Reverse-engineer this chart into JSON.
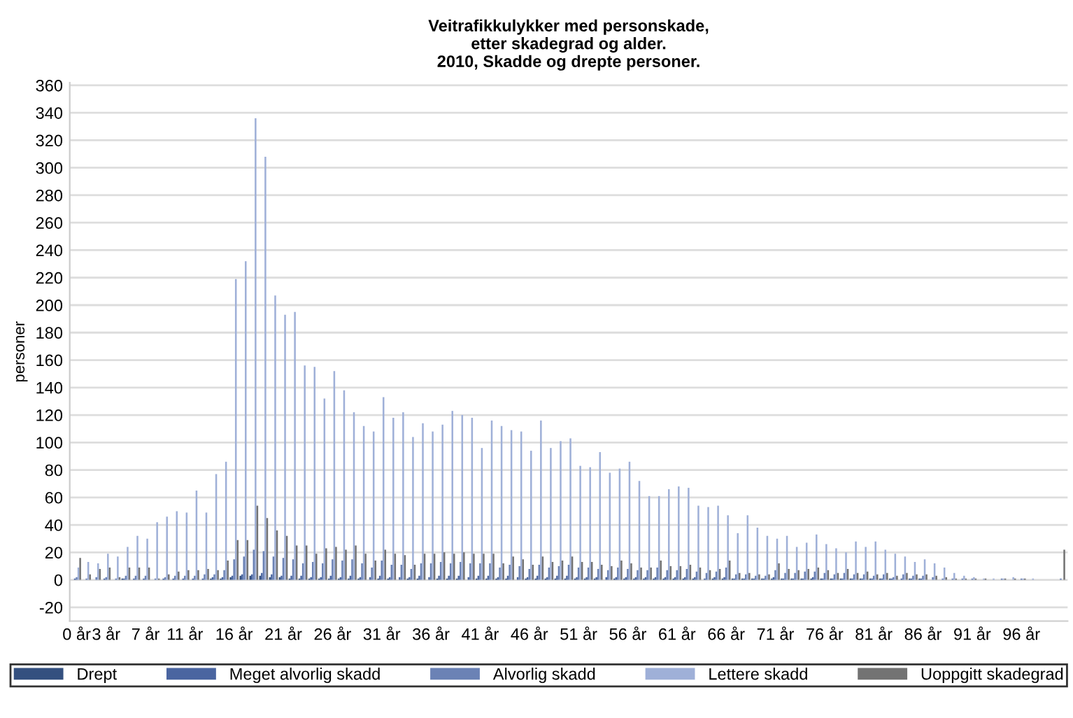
{
  "chart_data": {
    "type": "bar",
    "title": "Veitrafikkulykker med personskade,\netter skadegrad og alder.\n2010, Skadde og drepte personer.",
    "ylabel": "personer",
    "categories": [
      "0 år",
      null,
      null,
      "3 år",
      null,
      null,
      null,
      "7 år",
      null,
      null,
      null,
      "11 år",
      null,
      null,
      null,
      null,
      "16 år",
      null,
      null,
      null,
      null,
      "21 år",
      null,
      null,
      null,
      null,
      "26 år",
      null,
      null,
      null,
      null,
      "31 år",
      null,
      null,
      null,
      null,
      "36 år",
      null,
      null,
      null,
      null,
      "41 år",
      null,
      null,
      null,
      null,
      "46 år",
      null,
      null,
      null,
      null,
      "51 år",
      null,
      null,
      null,
      null,
      "56 år",
      null,
      null,
      null,
      null,
      "61 år",
      null,
      null,
      null,
      null,
      "66 år",
      null,
      null,
      null,
      null,
      "71 år",
      null,
      null,
      null,
      null,
      "76 år",
      null,
      null,
      null,
      null,
      "81 år",
      null,
      null,
      null,
      null,
      "86 år",
      null,
      null,
      null,
      null,
      "91 år",
      null,
      null,
      null,
      null,
      "96 år",
      null,
      null,
      null,
      null
    ],
    "series": [
      {
        "name": "Drept",
        "color": "#34507f",
        "values": [
          0,
          0,
          0,
          0,
          0,
          1,
          0,
          0,
          0,
          0,
          0,
          0,
          0,
          0,
          1,
          1,
          2,
          3,
          3,
          3,
          2,
          2,
          1,
          1,
          1,
          1,
          1,
          1,
          1,
          1,
          0,
          1,
          1,
          0,
          1,
          1,
          0,
          1,
          1,
          1,
          0,
          1,
          1,
          1,
          1,
          0,
          1,
          1,
          1,
          1,
          1,
          1,
          1,
          1,
          0,
          1,
          1,
          1,
          1,
          1,
          1,
          1,
          1,
          1,
          0,
          1,
          1,
          1,
          1,
          1,
          1,
          1,
          1,
          1,
          1,
          1,
          1,
          1,
          1,
          1,
          1,
          1,
          1,
          1,
          0,
          1,
          1,
          0,
          0,
          0,
          0,
          0,
          0,
          0,
          0,
          0,
          0,
          0,
          0,
          0,
          0
        ]
      },
      {
        "name": "Meget alvorlig skadd",
        "color": "#4a65a0",
        "values": [
          1,
          0,
          0,
          1,
          0,
          1,
          1,
          1,
          0,
          1,
          1,
          1,
          1,
          1,
          2,
          2,
          3,
          4,
          4,
          5,
          4,
          3,
          3,
          3,
          2,
          2,
          3,
          2,
          3,
          2,
          2,
          3,
          2,
          2,
          2,
          3,
          2,
          3,
          3,
          3,
          2,
          3,
          3,
          2,
          3,
          2,
          2,
          3,
          2,
          3,
          3,
          2,
          2,
          2,
          2,
          2,
          2,
          2,
          2,
          2,
          2,
          2,
          2,
          2,
          1,
          2,
          2,
          1,
          1,
          1,
          1,
          2,
          1,
          1,
          1,
          2,
          1,
          1,
          1,
          1,
          1,
          1,
          1,
          1,
          1,
          1,
          1,
          0,
          0,
          0,
          0,
          0,
          0,
          0,
          0,
          0,
          0,
          0,
          0,
          0,
          0
        ]
      },
      {
        "name": "Alvorlig skadd",
        "color": "#6b82b5",
        "values": [
          2,
          1,
          2,
          2,
          1,
          3,
          3,
          3,
          1,
          2,
          3,
          3,
          3,
          4,
          4,
          7,
          15,
          17,
          22,
          21,
          17,
          16,
          15,
          12,
          13,
          12,
          15,
          14,
          15,
          12,
          9,
          14,
          11,
          11,
          8,
          12,
          12,
          13,
          12,
          13,
          12,
          12,
          12,
          9,
          11,
          10,
          8,
          11,
          9,
          10,
          11,
          9,
          9,
          8,
          7,
          9,
          8,
          7,
          7,
          9,
          7,
          7,
          8,
          6,
          5,
          6,
          9,
          4,
          4,
          3,
          3,
          7,
          5,
          5,
          6,
          6,
          5,
          4,
          5,
          4,
          4,
          3,
          4,
          2,
          4,
          3,
          3,
          2,
          1,
          1,
          1,
          1,
          0,
          0,
          1,
          0,
          1,
          0,
          0,
          0,
          1
        ]
      },
      {
        "name": "Lettere skadd",
        "color": "#9fb0d8",
        "values": [
          9,
          13,
          12,
          19,
          17,
          24,
          32,
          30,
          42,
          46,
          50,
          49,
          65,
          49,
          77,
          86,
          219,
          232,
          336,
          308,
          207,
          193,
          195,
          156,
          155,
          132,
          152,
          138,
          122,
          112,
          108,
          133,
          118,
          122,
          104,
          114,
          108,
          113,
          123,
          120,
          118,
          96,
          116,
          112,
          109,
          108,
          94,
          116,
          96,
          101,
          103,
          83,
          82,
          93,
          78,
          81,
          86,
          72,
          61,
          61,
          66,
          68,
          67,
          54,
          53,
          54,
          47,
          34,
          47,
          38,
          32,
          30,
          32,
          24,
          27,
          33,
          26,
          23,
          20,
          28,
          24,
          28,
          22,
          19,
          17,
          13,
          15,
          12,
          9,
          5,
          3,
          2,
          1,
          1,
          1,
          2,
          1,
          1,
          0,
          0,
          0
        ]
      },
      {
        "name": "Uoppgitt skadegrad",
        "color": "#737373",
        "values": [
          16,
          4,
          8,
          9,
          2,
          9,
          9,
          9,
          1,
          4,
          6,
          7,
          7,
          8,
          7,
          14,
          29,
          29,
          54,
          45,
          36,
          32,
          25,
          25,
          19,
          23,
          24,
          22,
          25,
          19,
          14,
          22,
          19,
          18,
          11,
          19,
          19,
          20,
          19,
          20,
          19,
          19,
          19,
          12,
          17,
          15,
          11,
          17,
          13,
          14,
          17,
          13,
          13,
          11,
          10,
          14,
          12,
          9,
          9,
          14,
          10,
          10,
          11,
          9,
          7,
          8,
          14,
          5,
          5,
          4,
          4,
          12,
          8,
          7,
          8,
          9,
          7,
          5,
          8,
          5,
          6,
          4,
          5,
          3,
          5,
          4,
          4,
          3,
          2,
          1,
          1,
          1,
          1,
          0,
          1,
          1,
          1,
          0,
          0,
          0,
          22
        ]
      }
    ],
    "ylim": [
      -30,
      362
    ],
    "yticks": [
      -20,
      0,
      20,
      40,
      60,
      80,
      100,
      120,
      140,
      160,
      180,
      200,
      220,
      240,
      260,
      280,
      300,
      320,
      340,
      360
    ],
    "grid": "y",
    "legend": "bottom"
  }
}
